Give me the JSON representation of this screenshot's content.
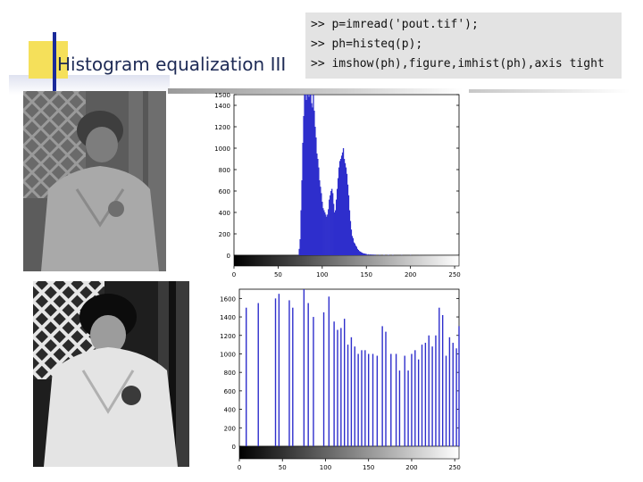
{
  "slide": {
    "title": "Histogram equalization III",
    "code_lines": [
      ">> p=imread('pout.tif');",
      ">> ph=histeq(p);",
      ">> imshow(ph),figure,imhist(ph),axis tight"
    ]
  },
  "images": [
    {
      "description_icon": "photo-original"
    },
    {
      "description_icon": "photo-equalized"
    }
  ],
  "chart_data": [
    {
      "type": "bar",
      "title": "",
      "xlabel": "",
      "ylabel": "",
      "xlim": [
        0,
        255
      ],
      "ylim": [
        0,
        1500
      ],
      "x_ticks": [
        0,
        50,
        100,
        150,
        200,
        250
      ],
      "y_ticks": [
        0,
        200,
        400,
        600,
        800,
        1000,
        1200,
        1400,
        1500
      ],
      "x_tick_labels": [
        "0",
        "50",
        "100",
        "150",
        "200",
        "250"
      ],
      "y_tick_labels": [
        "0",
        "200",
        "400",
        "600",
        "800",
        "1000",
        "1200",
        "1400",
        "1500"
      ],
      "colorbar": "grayscale",
      "bar_color": "#2e2ecc",
      "x": [
        74,
        75,
        76,
        77,
        78,
        79,
        80,
        81,
        82,
        83,
        84,
        85,
        86,
        87,
        88,
        89,
        90,
        91,
        92,
        93,
        94,
        95,
        96,
        97,
        98,
        99,
        100,
        101,
        102,
        103,
        104,
        105,
        106,
        107,
        108,
        109,
        110,
        111,
        112,
        113,
        114,
        115,
        116,
        117,
        118,
        119,
        120,
        121,
        122,
        123,
        124,
        125,
        126,
        127,
        128,
        129,
        130,
        131,
        132,
        133,
        134,
        135,
        136,
        137,
        138,
        139,
        140,
        141,
        142,
        143,
        144,
        145,
        146,
        147,
        148,
        149,
        150,
        152,
        154,
        156,
        158,
        160,
        165,
        170,
        175,
        180,
        190,
        200,
        210
      ],
      "values": [
        60,
        150,
        420,
        700,
        1050,
        1300,
        1500,
        1500,
        1450,
        1500,
        1500,
        1480,
        1500,
        1500,
        1420,
        1380,
        1500,
        1350,
        1200,
        1100,
        950,
        900,
        820,
        700,
        640,
        580,
        500,
        440,
        420,
        400,
        380,
        360,
        380,
        430,
        520,
        560,
        600,
        620,
        580,
        480,
        400,
        420,
        520,
        620,
        720,
        820,
        880,
        900,
        930,
        960,
        1000,
        900,
        860,
        820,
        760,
        660,
        560,
        420,
        320,
        240,
        180,
        160,
        120,
        110,
        90,
        80,
        60,
        50,
        40,
        35,
        30,
        25,
        20,
        18,
        16,
        14,
        12,
        10,
        9,
        8,
        7,
        6,
        5,
        4,
        4,
        3,
        2,
        2,
        1
      ]
    },
    {
      "type": "bar",
      "title": "",
      "xlabel": "",
      "ylabel": "",
      "xlim": [
        0,
        255
      ],
      "ylim": [
        0,
        1700
      ],
      "x_ticks": [
        0,
        50,
        100,
        150,
        200,
        250
      ],
      "y_ticks": [
        0,
        200,
        400,
        600,
        800,
        1000,
        1200,
        1400,
        1600
      ],
      "x_tick_labels": [
        "0",
        "50",
        "100",
        "150",
        "200",
        "250"
      ],
      "y_tick_labels": [
        "0",
        "200",
        "400",
        "600",
        "800",
        "1000",
        "1200",
        "1400",
        "1600"
      ],
      "colorbar": "grayscale",
      "bar_color": "#2e2ecc",
      "x": [
        8,
        22,
        42,
        46,
        58,
        62,
        75,
        80,
        86,
        98,
        104,
        110,
        114,
        118,
        122,
        126,
        130,
        134,
        138,
        142,
        146,
        150,
        155,
        160,
        166,
        170,
        176,
        182,
        186,
        192,
        196,
        200,
        204,
        208,
        212,
        216,
        220,
        224,
        228,
        232,
        236,
        240,
        244,
        248,
        252,
        255
      ],
      "values": [
        1500,
        1550,
        1600,
        1650,
        1580,
        1500,
        1700,
        1550,
        1400,
        1450,
        1620,
        1350,
        1260,
        1280,
        1380,
        1100,
        1180,
        1080,
        1000,
        1040,
        1040,
        1000,
        1000,
        980,
        1300,
        1240,
        1000,
        1000,
        820,
        980,
        820,
        1000,
        1040,
        940,
        1100,
        1120,
        1200,
        1080,
        1200,
        1500,
        1420,
        980,
        1180,
        1120,
        1060,
        1300
      ]
    }
  ]
}
